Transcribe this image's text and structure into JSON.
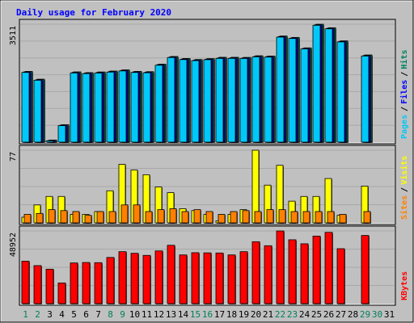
{
  "chart_data": {
    "type": "bar",
    "title": "Daily usage for February 2020",
    "days": [
      "1",
      "2",
      "3",
      "4",
      "5",
      "6",
      "7",
      "8",
      "9",
      "10",
      "11",
      "12",
      "13",
      "14",
      "15",
      "16",
      "17",
      "18",
      "19",
      "20",
      "21",
      "22",
      "23",
      "24",
      "25",
      "26",
      "27",
      "28",
      "29",
      "30",
      "31"
    ],
    "weekend_days": [
      "1",
      "2",
      "8",
      "9",
      "15",
      "16",
      "22",
      "23",
      "29",
      "30"
    ],
    "panels": [
      {
        "id": "hits",
        "max_label": "3511",
        "ylim": [
          0,
          3511
        ],
        "series": [
          {
            "name": "Hits",
            "color": "#00805c",
            "values": [
              2106,
              1874,
              62,
              519,
              2092,
              2070,
              2089,
              2117,
              2152,
              2106,
              2098,
              2323,
              2551,
              2491,
              2460,
              2487,
              2526,
              2526,
              2523,
              2572,
              2564,
              3160,
              3118,
              2807,
              3511,
              3406,
              3016,
              null,
              2596,
              null,
              null
            ]
          },
          {
            "name": "Files",
            "color": "#0000ff",
            "values": [
              2090,
              1857,
              50,
              505,
              2077,
              2056,
              2073,
              2101,
              2136,
              2091,
              2082,
              2306,
              2535,
              2474,
              2443,
              2471,
              2509,
              2510,
              2508,
              2556,
              2548,
              3143,
              3102,
              2791,
              3495,
              3390,
              3000,
              null,
              2580,
              null,
              null
            ]
          },
          {
            "name": "Pages",
            "color": "#00c8f8",
            "values": [
              2076,
              1843,
              40,
              490,
              2060,
              2040,
              2057,
              2085,
              2120,
              2075,
              2066,
              2290,
              2519,
              2458,
              2427,
              2455,
              2493,
              2494,
              2492,
              2540,
              2532,
              3127,
              3086,
              2775,
              3479,
              3374,
              2984,
              null,
              2564,
              null,
              null
            ]
          }
        ]
      },
      {
        "id": "visits",
        "max_label": "77",
        "ylim": [
          0,
          77
        ],
        "series": [
          {
            "name": "Visits",
            "color": "#ffff00",
            "values": [
              6,
              19,
              28,
              28,
              9,
              9,
              12,
              34,
              62,
              56,
              51,
              38,
              32,
              15,
              13,
              9,
              2,
              9,
              14,
              77,
              40,
              61,
              23,
              28,
              28,
              47,
              8,
              null,
              39,
              null,
              null
            ]
          },
          {
            "name": "Sites",
            "color": "#ff8000",
            "values": [
              9,
              10,
              14,
              13,
              12,
              8,
              12,
              12,
              19,
              19,
              12,
              14,
              15,
              12,
              14,
              12,
              9,
              12,
              13,
              12,
              14,
              14,
              12,
              12,
              12,
              12,
              9,
              null,
              12,
              null,
              null
            ]
          }
        ]
      },
      {
        "id": "kbytes",
        "max_label": "48952",
        "ylim": [
          0,
          48952
        ],
        "series": [
          {
            "name": "KBytes",
            "color": "#ff0000",
            "values": [
              28600,
              25600,
              23200,
              13900,
              27400,
              27700,
              27600,
              31100,
              35000,
              33900,
              32500,
              35500,
              39300,
              32800,
              34300,
              34200,
              34100,
              32800,
              35000,
              41700,
              39000,
              48952,
              43000,
              40300,
              45500,
              48000,
              37000,
              null,
              45900,
              null,
              null
            ]
          }
        ]
      }
    ]
  }
}
